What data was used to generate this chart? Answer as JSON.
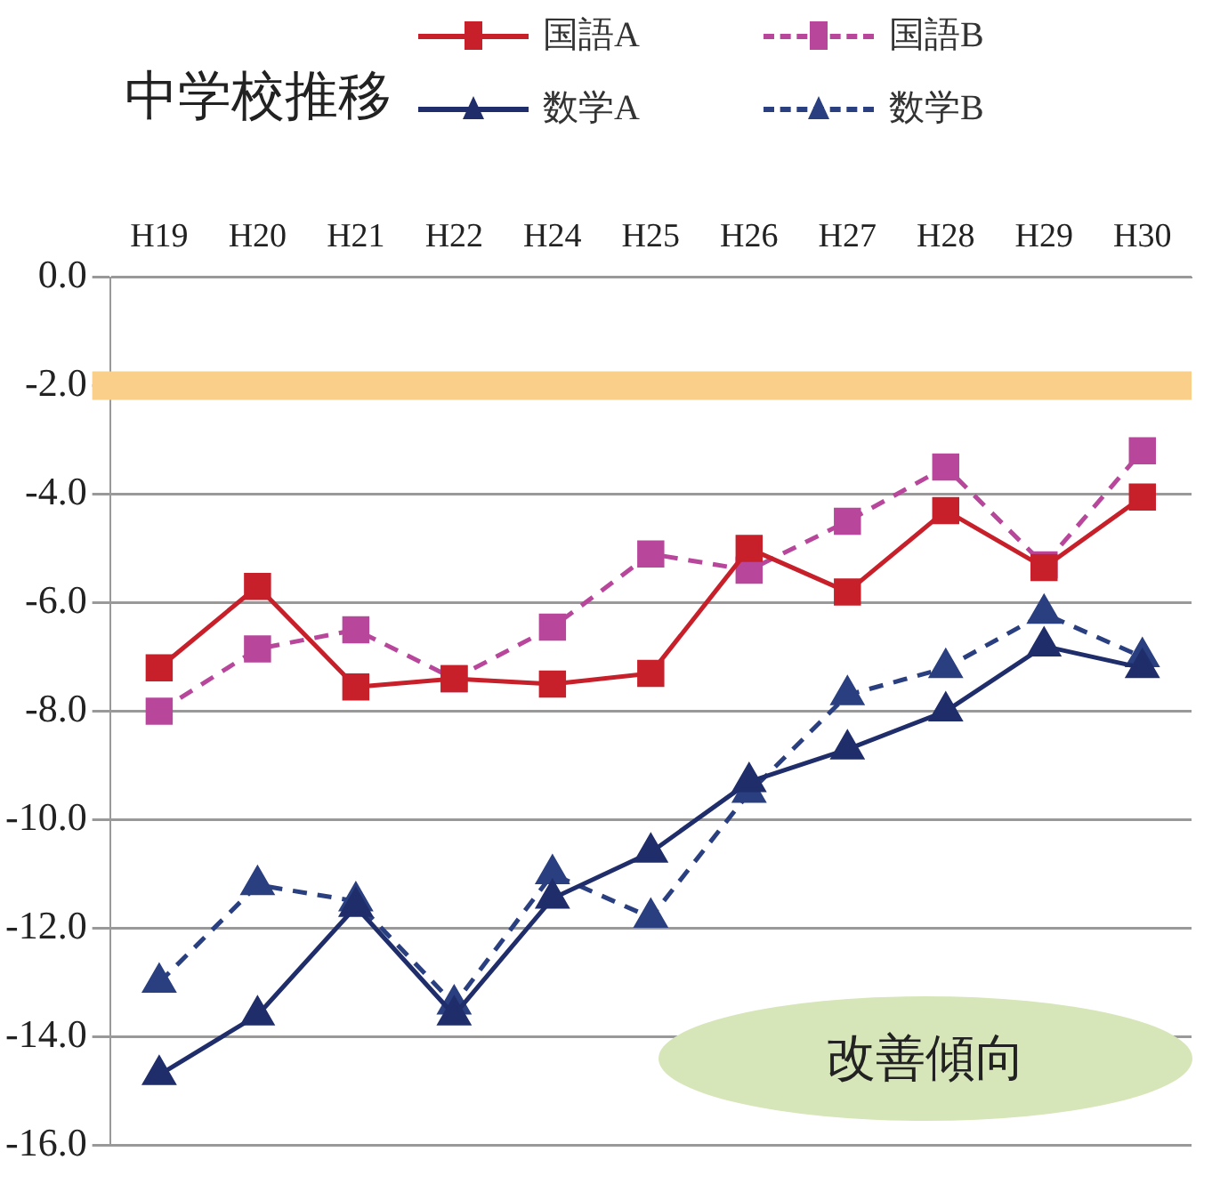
{
  "chart_data": {
    "type": "line",
    "title": "中学校推移",
    "categories": [
      "H19",
      "H20",
      "H21",
      "H22",
      "H24",
      "H25",
      "H26",
      "H27",
      "H28",
      "H29",
      "H30"
    ],
    "series": [
      {
        "name": "国語A",
        "color": "#c8202a",
        "marker": "square",
        "line_style": "solid",
        "values": [
          -7.2,
          -5.7,
          -7.55,
          -7.4,
          -7.5,
          -7.3,
          -5.0,
          -5.8,
          -4.3,
          -5.35,
          -4.05
        ]
      },
      {
        "name": "国語B",
        "color": "#b8479c",
        "marker": "square",
        "line_style": "dashed",
        "values": [
          -8.0,
          -6.85,
          -6.5,
          -7.4,
          -6.45,
          -5.1,
          -5.4,
          -4.5,
          -3.5,
          -5.3,
          -3.2
        ]
      },
      {
        "name": "数学A",
        "color": "#1f2d6b",
        "marker": "triangle",
        "line_style": "solid",
        "values": [
          -14.7,
          -13.6,
          -11.6,
          -13.6,
          -11.45,
          -10.6,
          -9.3,
          -8.7,
          -8.0,
          -6.8,
          -7.2
        ]
      },
      {
        "name": "数学B",
        "color": "#2a3f80",
        "marker": "triangle",
        "line_style": "dashed",
        "values": [
          -13.0,
          -11.2,
          -11.5,
          -13.4,
          -11.0,
          -11.8,
          -9.5,
          -7.7,
          -7.2,
          -6.2,
          -7.0
        ]
      }
    ],
    "ylim": [
      -16,
      0
    ],
    "yticks": [
      {
        "value": 0,
        "label": "0.0"
      },
      {
        "value": -2,
        "label": "-2.0"
      },
      {
        "value": -4,
        "label": "-4.0"
      },
      {
        "value": -6,
        "label": "-6.0"
      },
      {
        "value": -8,
        "label": "-8.0"
      },
      {
        "value": -10,
        "label": "-10.0"
      },
      {
        "value": -12,
        "label": "-12.0"
      },
      {
        "value": -14,
        "label": "-14.0"
      },
      {
        "value": -16,
        "label": "-16.0"
      }
    ],
    "grid": "y",
    "legend": "top right",
    "ref_lines": [
      {
        "axis": "y",
        "value": -2,
        "color": "#f9cf8a"
      }
    ],
    "annotations": [
      "改善傾向"
    ]
  }
}
